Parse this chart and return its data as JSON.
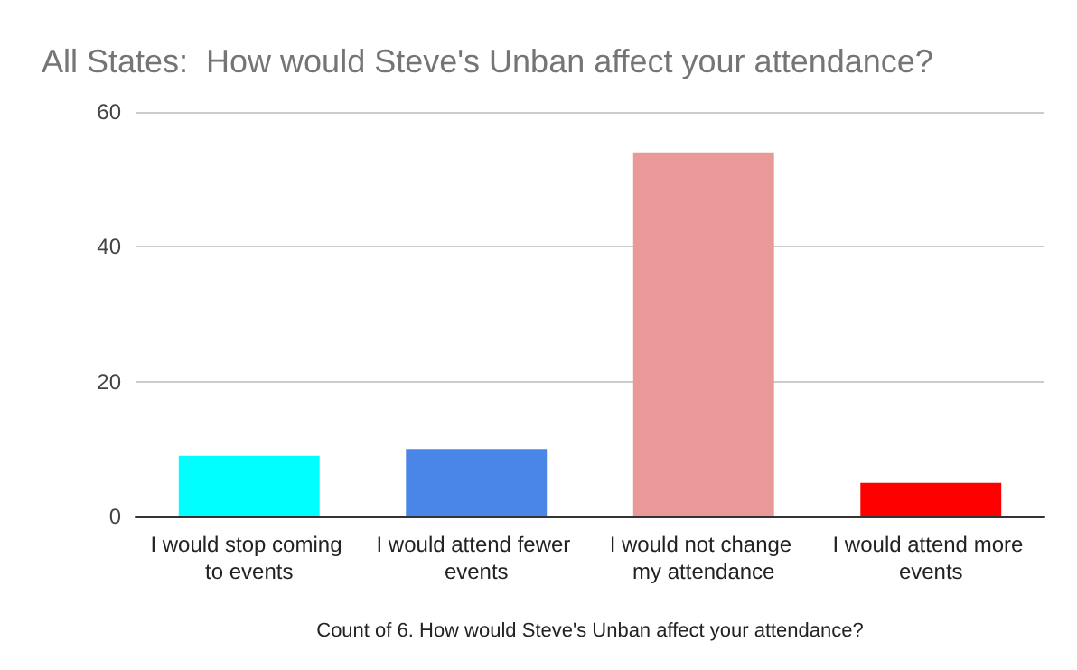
{
  "chart_data": {
    "type": "bar",
    "title": "All States:  How would Steve's Unban affect your attendance?",
    "xlabel": "Count of 6. How would Steve's Unban affect your attendance?",
    "categories": [
      "I would stop coming to events",
      "I would attend fewer events",
      "I would not change my attendance",
      "I would attend more events"
    ],
    "values": [
      9,
      10,
      54,
      5
    ],
    "colors": [
      "#00ffff",
      "#4a86e8",
      "#ea9999",
      "#ff0000"
    ],
    "ylim": [
      0,
      60
    ],
    "yticks": [
      0,
      20,
      40,
      60
    ],
    "grid": "y"
  }
}
